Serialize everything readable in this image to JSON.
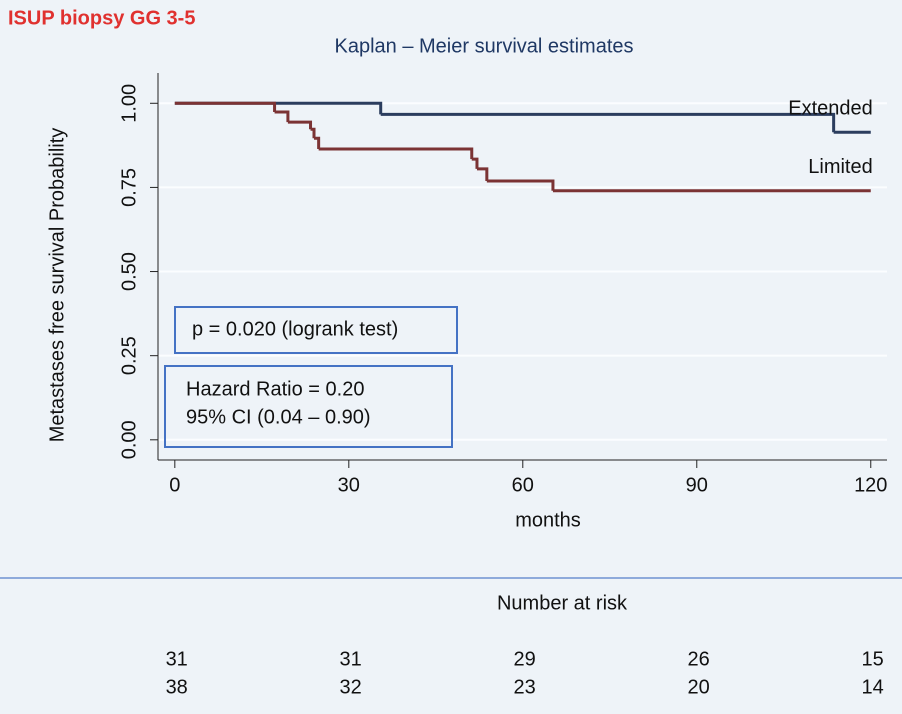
{
  "header": "ISUP biopsy GG 3-5",
  "chart_data": {
    "type": "step",
    "title": "Kaplan – Meier survival estimates",
    "ylabel": "Metastases free survival Probability",
    "xlabel": "months",
    "xlim": [
      -2.9,
      122.8
    ],
    "ylim": [
      -0.06,
      1.09
    ],
    "xticks": [
      0,
      30,
      60,
      90,
      120
    ],
    "yticks": [
      {
        "value": 0,
        "label": "0.00"
      },
      {
        "value": 0.25,
        "label": "0.25"
      },
      {
        "value": 0.5,
        "label": "0.50"
      },
      {
        "value": 0.75,
        "label": "0.75"
      },
      {
        "value": 1,
        "label": "1.00"
      }
    ],
    "grid": true,
    "series": [
      {
        "name": "Extended",
        "color": "#2b3d5e",
        "x": [
          0,
          35.5,
          113.6,
          120
        ],
        "values": [
          1,
          0.967,
          0.914,
          0.914
        ]
      },
      {
        "name": "Limited",
        "color": "#7b3334",
        "x": [
          0,
          17.2,
          19.5,
          23.4,
          24,
          24.8,
          51.2,
          52.1,
          53.8,
          65.2,
          120
        ],
        "values": [
          1,
          0.974,
          0.944,
          0.923,
          0.896,
          0.864,
          0.834,
          0.805,
          0.769,
          0.74,
          0.74
        ]
      }
    ],
    "annotations": [
      "p = 0.020 (logrank test)",
      "Hazard Ratio = 0.20",
      "95% CI (0.04 – 0.90)"
    ]
  },
  "risk_table": {
    "title": "Number  at risk",
    "rows": [
      [
        31,
        31,
        29,
        26,
        15
      ],
      [
        38,
        32,
        23,
        20,
        14
      ]
    ]
  }
}
